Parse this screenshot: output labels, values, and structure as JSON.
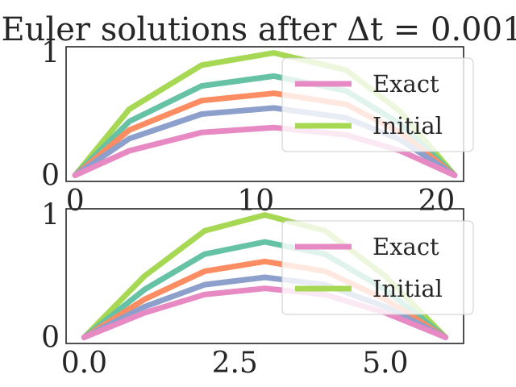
{
  "figure": {
    "title": "Euler solutions after Δt = 0.001"
  },
  "chart_data": [
    {
      "type": "line",
      "title": "",
      "xlabel": "",
      "ylabel": "",
      "xlim": [
        -0.5,
        21.5
      ],
      "ylim": [
        -0.05,
        1.05
      ],
      "xticks": [
        0,
        10,
        20
      ],
      "xtick_labels": [
        "0",
        "10",
        "20"
      ],
      "yticks": [
        0,
        1
      ],
      "ytick_labels": [
        "0",
        "1"
      ],
      "grid": false,
      "legend": {
        "position": "right",
        "entries": [
          {
            "label": "Exact",
            "color": "#e78ac3"
          },
          {
            "label": "Initial",
            "color": "#a6d854"
          }
        ]
      },
      "x": [
        0,
        3,
        7,
        11,
        15,
        18,
        21
      ],
      "series": [
        {
          "color": "#a6d854",
          "values": [
            0,
            0.54,
            0.9,
            1.0,
            0.86,
            0.52,
            0
          ]
        },
        {
          "color": "#66c2a5",
          "values": [
            0,
            0.44,
            0.73,
            0.81,
            0.69,
            0.42,
            0
          ]
        },
        {
          "color": "#fc8d62",
          "values": [
            0,
            0.37,
            0.61,
            0.67,
            0.58,
            0.35,
            0
          ]
        },
        {
          "color": "#8da0cb",
          "values": [
            0,
            0.3,
            0.5,
            0.55,
            0.47,
            0.29,
            0
          ]
        },
        {
          "name": "Exact",
          "color": "#e78ac3",
          "values": [
            0,
            0.2,
            0.35,
            0.39,
            0.33,
            0.2,
            0
          ]
        }
      ]
    },
    {
      "type": "line",
      "title": "",
      "xlabel": "",
      "ylabel": "",
      "xlim": [
        -0.3,
        6.3
      ],
      "ylim": [
        -0.05,
        1.05
      ],
      "xticks": [
        0.0,
        2.5,
        5.0
      ],
      "xtick_labels": [
        "0.0",
        "2.5",
        "5.0"
      ],
      "yticks": [
        0,
        1
      ],
      "ytick_labels": [
        "0",
        "1"
      ],
      "grid": false,
      "legend": {
        "position": "right",
        "entries": [
          {
            "label": "Exact",
            "color": "#e78ac3"
          },
          {
            "label": "Initial",
            "color": "#a6d854"
          }
        ]
      },
      "x": [
        0,
        1,
        2,
        3,
        4,
        5,
        6
      ],
      "series": [
        {
          "color": "#a6d854",
          "values": [
            0,
            0.5,
            0.87,
            1.0,
            0.87,
            0.5,
            0
          ]
        },
        {
          "color": "#66c2a5",
          "values": [
            0,
            0.39,
            0.68,
            0.78,
            0.68,
            0.39,
            0
          ]
        },
        {
          "color": "#fc8d62",
          "values": [
            0,
            0.31,
            0.54,
            0.62,
            0.54,
            0.31,
            0
          ]
        },
        {
          "color": "#8da0cb",
          "values": [
            0,
            0.25,
            0.43,
            0.49,
            0.43,
            0.25,
            0
          ]
        },
        {
          "name": "Exact",
          "color": "#e78ac3",
          "values": [
            0,
            0.2,
            0.35,
            0.4,
            0.35,
            0.2,
            0
          ]
        }
      ]
    }
  ]
}
